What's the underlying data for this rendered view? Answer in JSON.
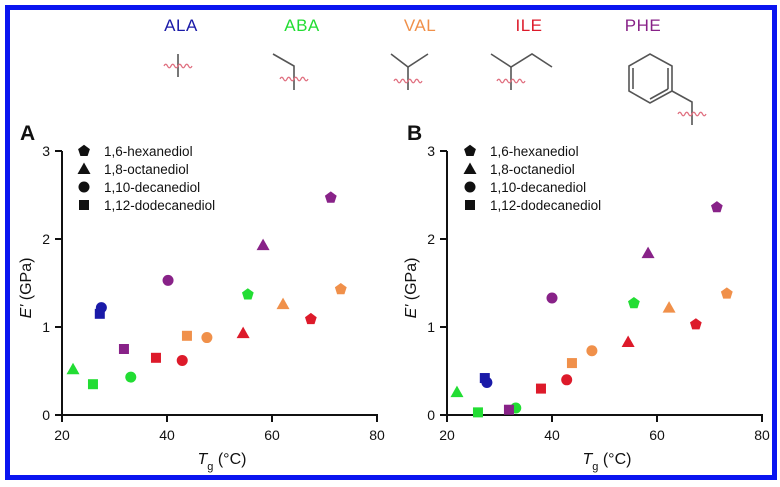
{
  "figure": {
    "border_color": "#0a14f0",
    "amino_acids": [
      {
        "key": "ALA",
        "label": "ALA",
        "color": "#1a1aa8",
        "structure": "methyl"
      },
      {
        "key": "ABA",
        "label": "ABA",
        "color": "#22dd33",
        "structure": "ethyl"
      },
      {
        "key": "VAL",
        "label": "VAL",
        "color": "#f0904a",
        "structure": "isopropyl"
      },
      {
        "key": "ILE",
        "label": "ILE",
        "color": "#dd1a2a",
        "structure": "sec-butyl"
      },
      {
        "key": "PHE",
        "label": "PHE",
        "color": "#882288",
        "structure": "benzyl"
      }
    ],
    "molecule_line_color": "#555555",
    "wavy_bond_color": "#e07080"
  },
  "chart_data": [
    {
      "type": "scatter",
      "panel": "A",
      "title": "",
      "xlabel": "T_g (°C)",
      "xlabel_main": "T",
      "xlabel_sub": "g",
      "xlabel_unit": " (°C)",
      "ylabel": "E' (GPa)",
      "ylabel_main": "E'",
      "ylabel_unit": " (GPa)",
      "xlim": [
        20,
        80
      ],
      "ylim": [
        0,
        3
      ],
      "xticks": [
        20,
        40,
        60,
        80
      ],
      "yticks": [
        0,
        1,
        2,
        3
      ],
      "grid": false,
      "legend_position": "top-left",
      "legend": [
        {
          "label": "1,6-hexanediol",
          "marker": "pentagon"
        },
        {
          "label": "1,8-octanediol",
          "marker": "triangle"
        },
        {
          "label": "1,10-decanediol",
          "marker": "circle"
        },
        {
          "label": "1,12-dodecanediol",
          "marker": "square"
        }
      ],
      "points": [
        {
          "aa": "ALA",
          "diol": "1,10-decanediol",
          "marker": "circle",
          "x": 27.5,
          "y": 1.22
        },
        {
          "aa": "ALA",
          "diol": "1,12-dodecanediol",
          "marker": "square",
          "x": 27.2,
          "y": 1.15
        },
        {
          "aa": "ABA",
          "diol": "1,8-octanediol",
          "marker": "triangle",
          "x": 22.1,
          "y": 0.52
        },
        {
          "aa": "ABA",
          "diol": "1,12-dodecanediol",
          "marker": "square",
          "x": 25.9,
          "y": 0.35
        },
        {
          "aa": "ABA",
          "diol": "1,10-decanediol",
          "marker": "circle",
          "x": 33.1,
          "y": 0.43
        },
        {
          "aa": "ABA",
          "diol": "1,6-hexanediol",
          "marker": "pentagon",
          "x": 55.4,
          "y": 1.37
        },
        {
          "aa": "VAL",
          "diol": "1,12-dodecanediol",
          "marker": "square",
          "x": 43.8,
          "y": 0.9
        },
        {
          "aa": "VAL",
          "diol": "1,10-decanediol",
          "marker": "circle",
          "x": 47.6,
          "y": 0.88
        },
        {
          "aa": "VAL",
          "diol": "1,8-octanediol",
          "marker": "triangle",
          "x": 62.1,
          "y": 1.26
        },
        {
          "aa": "VAL",
          "diol": "1,6-hexanediol",
          "marker": "pentagon",
          "x": 73.1,
          "y": 1.43
        },
        {
          "aa": "ILE",
          "diol": "1,12-dodecanediol",
          "marker": "square",
          "x": 37.9,
          "y": 0.65
        },
        {
          "aa": "ILE",
          "diol": "1,10-decanediol",
          "marker": "circle",
          "x": 42.9,
          "y": 0.62
        },
        {
          "aa": "ILE",
          "diol": "1,8-octanediol",
          "marker": "triangle",
          "x": 54.5,
          "y": 0.93
        },
        {
          "aa": "ILE",
          "diol": "1,6-hexanediol",
          "marker": "pentagon",
          "x": 67.4,
          "y": 1.09
        },
        {
          "aa": "PHE",
          "diol": "1,12-dodecanediol",
          "marker": "square",
          "x": 31.8,
          "y": 0.75
        },
        {
          "aa": "PHE",
          "diol": "1,10-decanediol",
          "marker": "circle",
          "x": 40.2,
          "y": 1.53
        },
        {
          "aa": "PHE",
          "diol": "1,8-octanediol",
          "marker": "triangle",
          "x": 58.3,
          "y": 1.93
        },
        {
          "aa": "PHE",
          "diol": "1,6-hexanediol",
          "marker": "pentagon",
          "x": 71.2,
          "y": 2.47
        }
      ]
    },
    {
      "type": "scatter",
      "panel": "B",
      "title": "",
      "xlabel": "T_g (°C)",
      "xlabel_main": "T",
      "xlabel_sub": "g",
      "xlabel_unit": " (°C)",
      "ylabel": "E' (GPa)",
      "ylabel_main": "E'",
      "ylabel_unit": " (GPa)",
      "xlim": [
        20,
        80
      ],
      "ylim": [
        0,
        3
      ],
      "xticks": [
        20,
        40,
        60,
        80
      ],
      "yticks": [
        0,
        1,
        2,
        3
      ],
      "grid": false,
      "legend_position": "top-left",
      "legend": [
        {
          "label": "1,6-hexanediol",
          "marker": "pentagon"
        },
        {
          "label": "1,8-octanediol",
          "marker": "triangle"
        },
        {
          "label": "1,10-decanediol",
          "marker": "circle"
        },
        {
          "label": "1,12-dodecanediol",
          "marker": "square"
        }
      ],
      "points": [
        {
          "aa": "ALA",
          "diol": "1,12-dodecanediol",
          "marker": "square",
          "x": 27.2,
          "y": 0.42
        },
        {
          "aa": "ALA",
          "diol": "1,10-decanediol",
          "marker": "circle",
          "x": 27.6,
          "y": 0.37
        },
        {
          "aa": "ABA",
          "diol": "1,8-octanediol",
          "marker": "triangle",
          "x": 21.9,
          "y": 0.26
        },
        {
          "aa": "ABA",
          "diol": "1,12-dodecanediol",
          "marker": "square",
          "x": 25.9,
          "y": 0.03
        },
        {
          "aa": "ABA",
          "diol": "1,10-decanediol",
          "marker": "circle",
          "x": 33.1,
          "y": 0.08
        },
        {
          "aa": "ABA",
          "diol": "1,6-hexanediol",
          "marker": "pentagon",
          "x": 55.6,
          "y": 1.27
        },
        {
          "aa": "VAL",
          "diol": "1,12-dodecanediol",
          "marker": "square",
          "x": 43.8,
          "y": 0.59
        },
        {
          "aa": "VAL",
          "diol": "1,10-decanediol",
          "marker": "circle",
          "x": 47.6,
          "y": 0.73
        },
        {
          "aa": "VAL",
          "diol": "1,8-octanediol",
          "marker": "triangle",
          "x": 62.3,
          "y": 1.22
        },
        {
          "aa": "VAL",
          "diol": "1,6-hexanediol",
          "marker": "pentagon",
          "x": 73.3,
          "y": 1.38
        },
        {
          "aa": "ILE",
          "diol": "1,12-dodecanediol",
          "marker": "square",
          "x": 37.9,
          "y": 0.3
        },
        {
          "aa": "ILE",
          "diol": "1,10-decanediol",
          "marker": "circle",
          "x": 42.8,
          "y": 0.4
        },
        {
          "aa": "ILE",
          "diol": "1,8-octanediol",
          "marker": "triangle",
          "x": 54.5,
          "y": 0.83
        },
        {
          "aa": "ILE",
          "diol": "1,6-hexanediol",
          "marker": "pentagon",
          "x": 67.4,
          "y": 1.03
        },
        {
          "aa": "PHE",
          "diol": "1,12-dodecanediol",
          "marker": "square",
          "x": 31.8,
          "y": 0.06
        },
        {
          "aa": "PHE",
          "diol": "1,10-decanediol",
          "marker": "circle",
          "x": 40.0,
          "y": 1.33
        },
        {
          "aa": "PHE",
          "diol": "1,8-octanediol",
          "marker": "triangle",
          "x": 58.3,
          "y": 1.84
        },
        {
          "aa": "PHE",
          "diol": "1,6-hexanediol",
          "marker": "pentagon",
          "x": 71.4,
          "y": 2.36
        }
      ]
    }
  ]
}
